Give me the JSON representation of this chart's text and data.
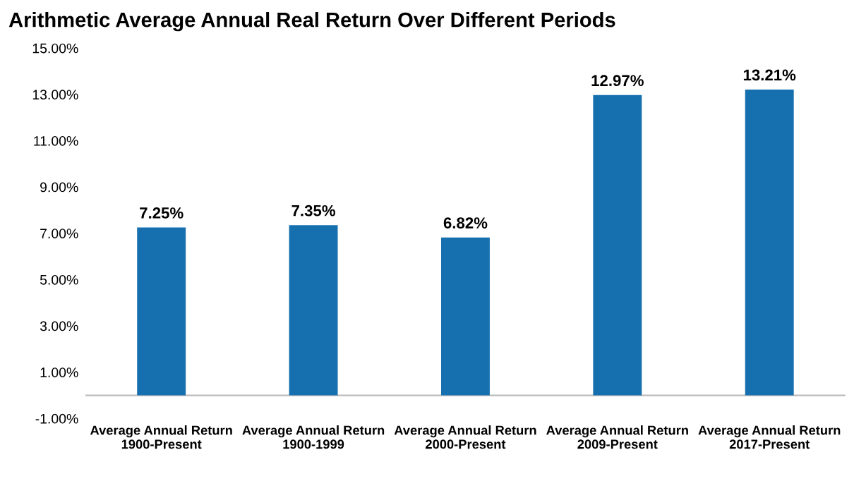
{
  "chart_data": {
    "type": "bar",
    "title": "Arithmetic Average Annual Real Return Over Different Periods",
    "categories": [
      "Average Annual Return\n1900-Present",
      "Average Annual Return\n1900-1999",
      "Average Annual Return\n2000-Present",
      "Average Annual Return\n2009-Present",
      "Average Annual Return\n2017-Present"
    ],
    "values": [
      7.25,
      7.35,
      6.82,
      12.97,
      13.21
    ],
    "value_labels": [
      "7.25%",
      "7.35%",
      "6.82%",
      "12.97%",
      "13.21%"
    ],
    "color": "#1670b0",
    "ylim": [
      -1,
      15
    ],
    "yticks": [
      {
        "value": -1,
        "label": "-1.00%"
      },
      {
        "value": 1,
        "label": "1.00%"
      },
      {
        "value": 3,
        "label": "3.00%"
      },
      {
        "value": 5,
        "label": "5.00%"
      },
      {
        "value": 7,
        "label": "7.00%"
      },
      {
        "value": 9,
        "label": "9.00%"
      },
      {
        "value": 11,
        "label": "11.00%"
      },
      {
        "value": 13,
        "label": "13.00%"
      },
      {
        "value": 15,
        "label": "15.00%"
      }
    ],
    "grid": false,
    "legend": false
  }
}
